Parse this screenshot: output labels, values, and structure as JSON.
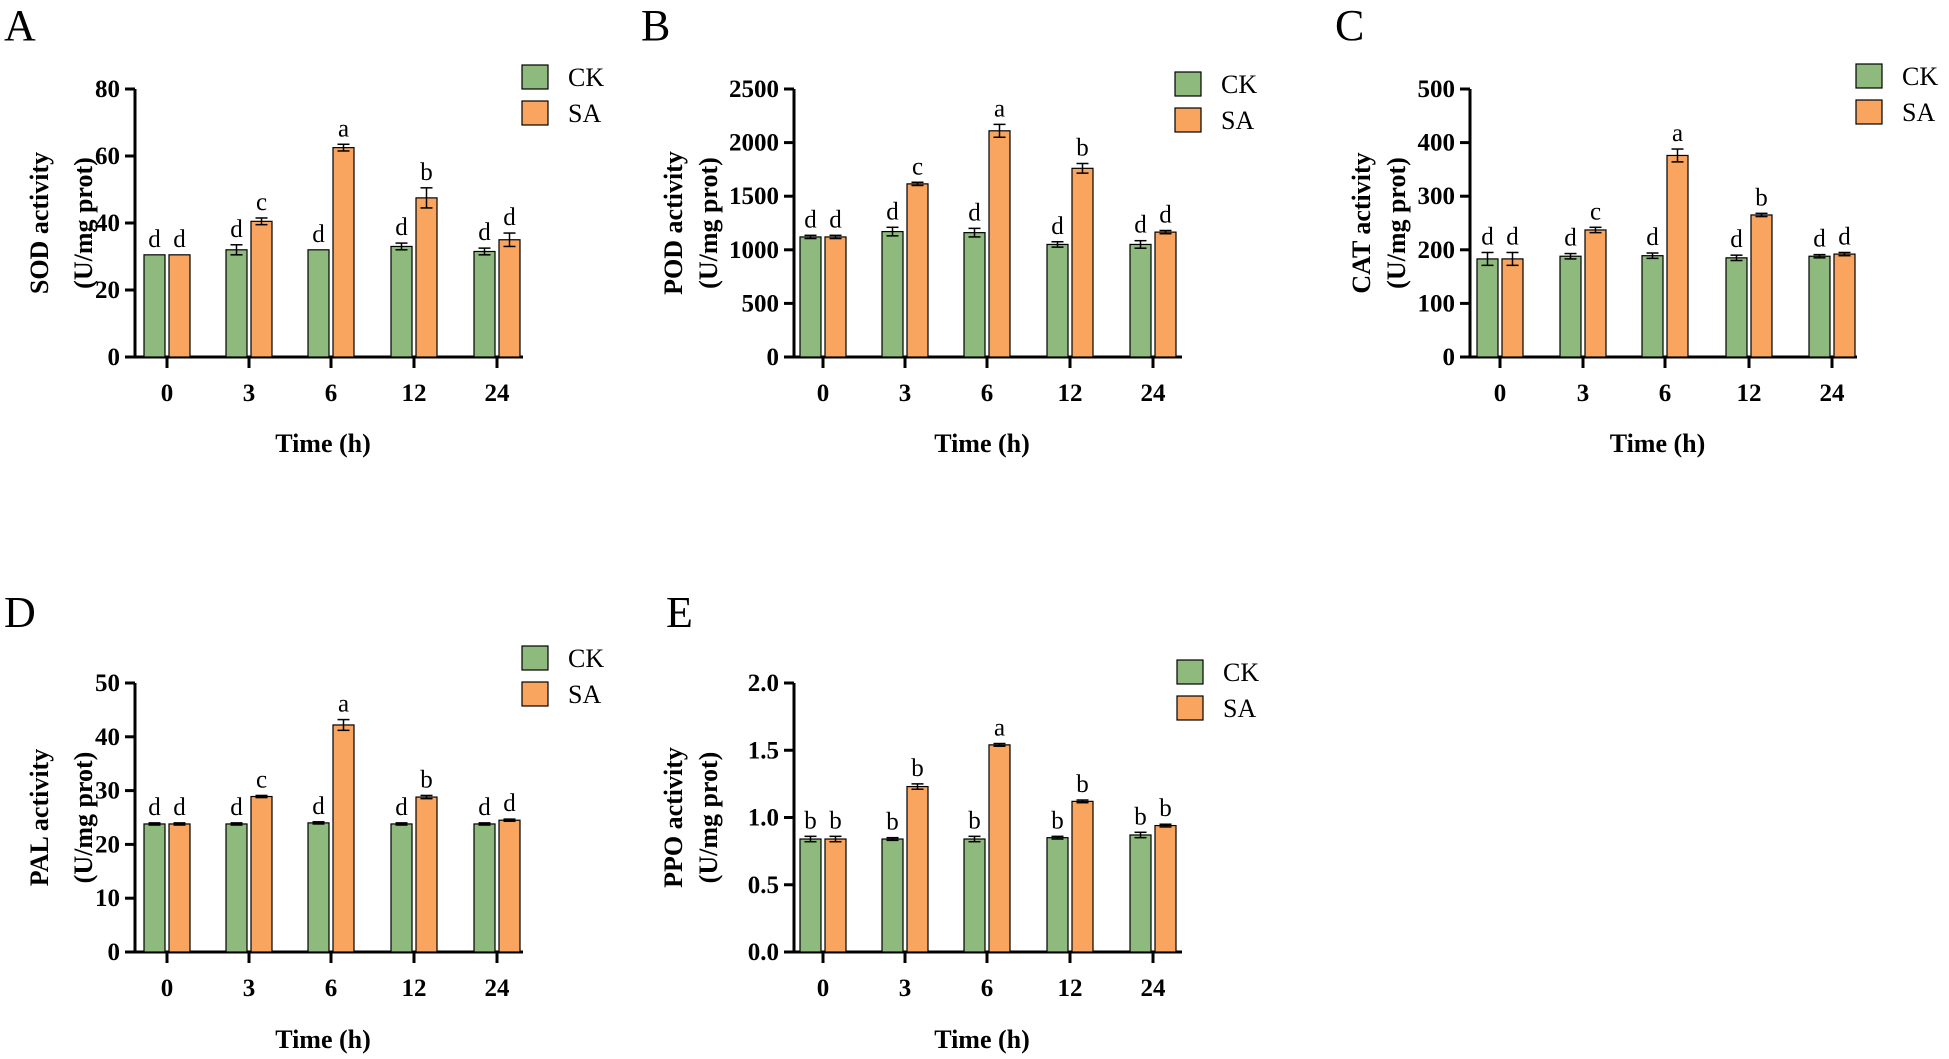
{
  "figure": {
    "series_names": [
      "CK",
      "SA"
    ],
    "colors": {
      "CK": "#8fba7e",
      "SA": "#f9a560",
      "axis": "#000000",
      "bar_stroke": "#000000"
    }
  },
  "chart_data": [
    {
      "type": "bar",
      "panel": "A",
      "title": "",
      "xlabel": "Time (h)",
      "ylabel": [
        "SOD activity",
        "(U/mg prot)"
      ],
      "categories": [
        "0",
        "3",
        "6",
        "12",
        "24"
      ],
      "ylim": [
        0,
        80
      ],
      "yticks": [
        "0",
        "20",
        "40",
        "60",
        "80"
      ],
      "series": [
        {
          "name": "CK",
          "values": [
            30.5,
            32,
            32,
            33,
            31.5
          ],
          "errors": [
            0,
            1.5,
            0,
            1,
            1
          ],
          "labels": [
            "d",
            "d",
            "d",
            "d",
            "d"
          ]
        },
        {
          "name": "SA",
          "values": [
            30.5,
            40.5,
            62.5,
            47.5,
            35
          ],
          "errors": [
            0,
            1,
            1,
            3,
            2
          ],
          "labels": [
            "d",
            "c",
            "a",
            "b",
            "d"
          ]
        }
      ]
    },
    {
      "type": "bar",
      "panel": "B",
      "title": "",
      "xlabel": "Time (h)",
      "ylabel": [
        "POD activity",
        "(U/mg prot)"
      ],
      "categories": [
        "0",
        "3",
        "6",
        "12",
        "24"
      ],
      "ylim": [
        0,
        2500
      ],
      "yticks": [
        "0",
        "500",
        "1000",
        "1500",
        "2000",
        "2500"
      ],
      "series": [
        {
          "name": "CK",
          "values": [
            1120,
            1170,
            1160,
            1050,
            1050
          ],
          "errors": [
            15,
            40,
            40,
            25,
            35
          ],
          "labels": [
            "d",
            "d",
            "d",
            "d",
            "d"
          ]
        },
        {
          "name": "SA",
          "values": [
            1120,
            1615,
            2110,
            1760,
            1165
          ],
          "errors": [
            15,
            15,
            60,
            45,
            15
          ],
          "labels": [
            "d",
            "c",
            "a",
            "b",
            "d"
          ]
        }
      ]
    },
    {
      "type": "bar",
      "panel": "C",
      "title": "",
      "xlabel": "Time (h)",
      "ylabel": [
        "CAT activity",
        "(U/mg prot)"
      ],
      "categories": [
        "0",
        "3",
        "6",
        "12",
        "24"
      ],
      "ylim": [
        0,
        500
      ],
      "yticks": [
        "0",
        "100",
        "200",
        "300",
        "400",
        "500"
      ],
      "series": [
        {
          "name": "CK",
          "values": [
            183,
            188,
            189,
            185,
            188
          ],
          "errors": [
            12,
            5,
            5,
            5,
            3
          ],
          "labels": [
            "d",
            "d",
            "d",
            "d",
            "d"
          ]
        },
        {
          "name": "SA",
          "values": [
            183,
            237,
            376,
            265,
            192
          ],
          "errors": [
            12,
            5,
            12,
            3,
            3
          ],
          "labels": [
            "d",
            "c",
            "a",
            "b",
            "d"
          ]
        }
      ]
    },
    {
      "type": "bar",
      "panel": "D",
      "title": "",
      "xlabel": "Time (h)",
      "ylabel": [
        "PAL activity",
        "(U/mg prot)"
      ],
      "categories": [
        "0",
        "3",
        "6",
        "12",
        "24"
      ],
      "ylim": [
        0,
        50
      ],
      "yticks": [
        "0",
        "10",
        "20",
        "30",
        "40",
        "50"
      ],
      "series": [
        {
          "name": "CK",
          "values": [
            23.8,
            23.8,
            24,
            23.8,
            23.8
          ],
          "errors": [
            0.2,
            0.2,
            0.2,
            0.2,
            0.2
          ],
          "labels": [
            "d",
            "d",
            "d",
            "d",
            "d"
          ]
        },
        {
          "name": "SA",
          "values": [
            23.8,
            28.9,
            42.2,
            28.8,
            24.5
          ],
          "errors": [
            0.2,
            0.2,
            1,
            0.3,
            0.2
          ],
          "labels": [
            "d",
            "c",
            "a",
            "b",
            "d"
          ]
        }
      ]
    },
    {
      "type": "bar",
      "panel": "E",
      "title": "",
      "xlabel": "Time (h)",
      "ylabel": [
        "PPO activity",
        "(U/mg prot)"
      ],
      "categories": [
        "0",
        "3",
        "6",
        "12",
        "24"
      ],
      "ylim": [
        0,
        2.0
      ],
      "yticks": [
        "0.0",
        "0.5",
        "1.0",
        "1.5",
        "2.0"
      ],
      "series": [
        {
          "name": "CK",
          "values": [
            0.84,
            0.84,
            0.84,
            0.85,
            0.87
          ],
          "errors": [
            0.02,
            0.01,
            0.02,
            0.01,
            0.02
          ],
          "labels": [
            "b",
            "b",
            "b",
            "b",
            "b"
          ]
        },
        {
          "name": "SA",
          "values": [
            0.84,
            1.23,
            1.54,
            1.12,
            0.94
          ],
          "errors": [
            0.02,
            0.02,
            0.01,
            0.01,
            0.01
          ],
          "labels": [
            "b",
            "b",
            "a",
            "b",
            "b"
          ]
        }
      ]
    }
  ]
}
